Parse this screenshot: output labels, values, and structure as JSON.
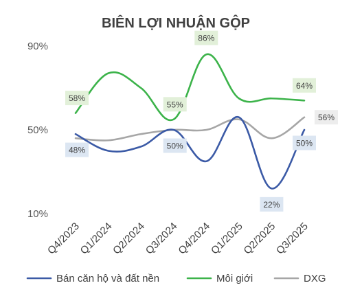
{
  "chart_data": {
    "type": "line",
    "title": "BIÊN LỢI NHUẬN GỘP",
    "categories": [
      "Q4/2023",
      "Q1/2024",
      "Q2/2024",
      "Q3/2024",
      "Q4/2024",
      "Q1/2025",
      "Q2/2025",
      "Q3/2025"
    ],
    "yticks": [
      "90%",
      "50%",
      "10%"
    ],
    "ylim": [
      10,
      90
    ],
    "grid": false,
    "legend_position": "bottom",
    "series": [
      {
        "name": "Bán căn hộ và đất nền",
        "color": "#3b5aa6",
        "values": [
          48,
          40,
          42,
          50,
          35,
          56,
          22,
          50
        ],
        "labels": [
          {
            "index": 0,
            "text": "48%"
          },
          {
            "index": 3,
            "text": "50%"
          },
          {
            "index": 6,
            "text": "22%"
          },
          {
            "index": 7,
            "text": "50%"
          }
        ],
        "label_bg": "#dce6f2"
      },
      {
        "name": "Môi giới",
        "color": "#3cb34a",
        "values": [
          58,
          77,
          70,
          55,
          86,
          65,
          65,
          64
        ],
        "labels": [
          {
            "index": 0,
            "text": "58%"
          },
          {
            "index": 3,
            "text": "55%"
          },
          {
            "index": 4,
            "text": "86%"
          },
          {
            "index": 7,
            "text": "64%"
          }
        ],
        "label_bg": "#e2f0d9"
      },
      {
        "name": "DXG",
        "color": "#a6a6a6",
        "values": [
          46,
          45,
          48,
          50,
          50,
          55,
          46,
          56
        ],
        "labels": [
          {
            "index": 7,
            "text": "56%"
          }
        ],
        "label_bg": "#ededed"
      }
    ]
  }
}
